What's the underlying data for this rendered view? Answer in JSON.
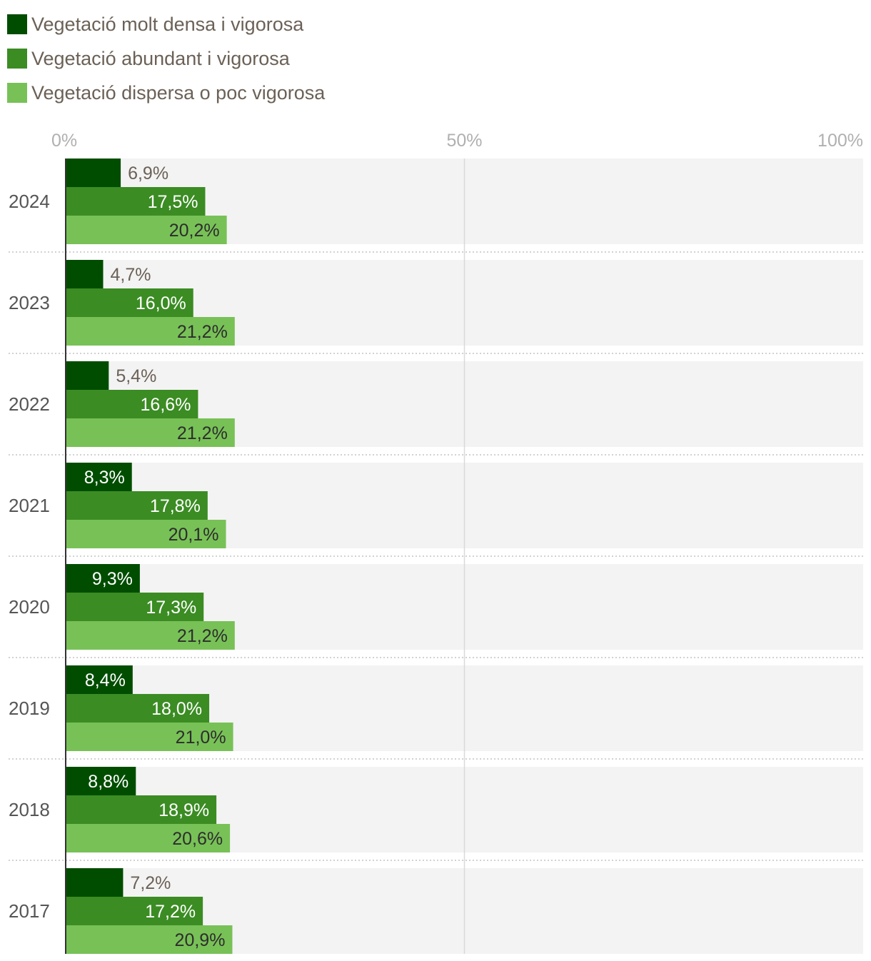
{
  "chart_data": {
    "type": "bar",
    "orientation": "horizontal",
    "categories": [
      "2024",
      "2023",
      "2022",
      "2021",
      "2020",
      "2019",
      "2018",
      "2017"
    ],
    "series": [
      {
        "name": "Vegetació molt densa i vigorosa",
        "color": "#004d00",
        "values": [
          6.9,
          4.7,
          5.4,
          8.3,
          9.3,
          8.4,
          8.8,
          7.2
        ],
        "labels": [
          "6,9%",
          "4,7%",
          "5,4%",
          "8,3%",
          "9,3%",
          "8,4%",
          "8,8%",
          "7,2%"
        ]
      },
      {
        "name": "Vegetació abundant i vigorosa",
        "color": "#3b8c23",
        "values": [
          17.5,
          16.0,
          16.6,
          17.8,
          17.3,
          18.0,
          18.9,
          17.2
        ],
        "labels": [
          "17,5%",
          "16,0%",
          "16,6%",
          "17,8%",
          "17,3%",
          "18,0%",
          "18,9%",
          "17,2%"
        ]
      },
      {
        "name": "Vegetació dispersa o poc vigorosa",
        "color": "#78c157",
        "values": [
          20.2,
          21.2,
          21.2,
          20.1,
          21.2,
          21.0,
          20.6,
          20.9
        ],
        "labels": [
          "20,2%",
          "21,2%",
          "21,2%",
          "20,1%",
          "21,2%",
          "21,0%",
          "20,6%",
          "20,9%"
        ]
      }
    ],
    "xlim": [
      0,
      100
    ],
    "ticks": [
      0,
      50,
      100
    ],
    "tick_labels": [
      "0%",
      "50%",
      "100%"
    ],
    "legend_position": "top-left",
    "grid": true
  }
}
